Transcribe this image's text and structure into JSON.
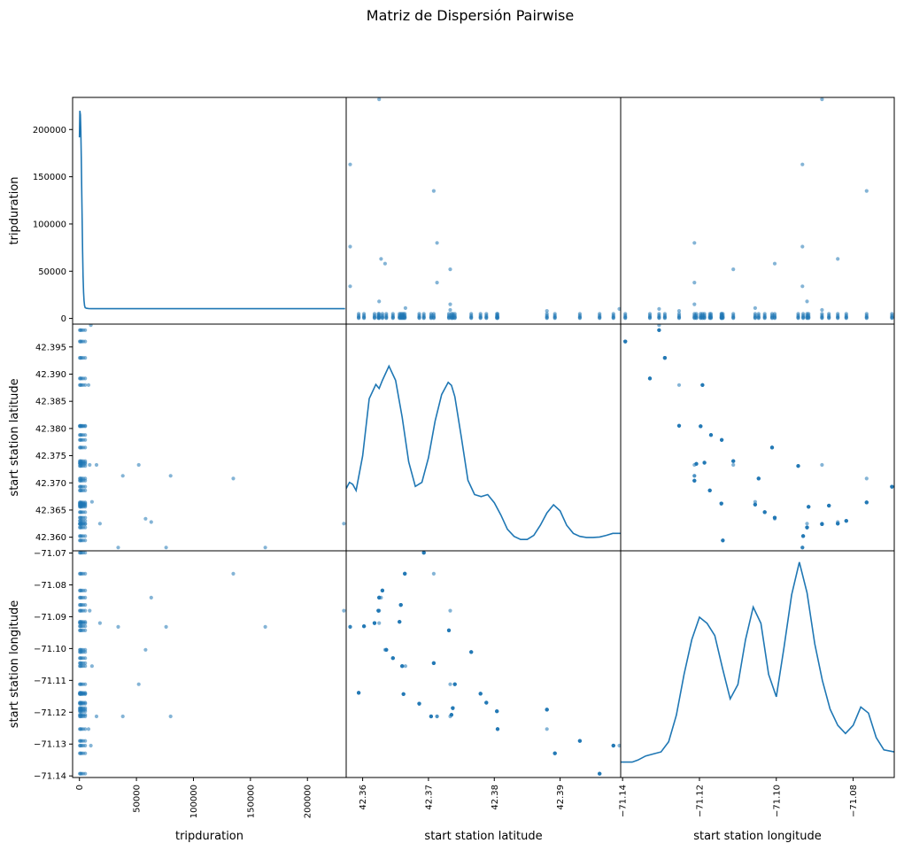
{
  "title": "Matriz de Dispersión Pairwise",
  "colors": {
    "series": "#1f77b4",
    "axis": "#000000",
    "background": "#ffffff"
  },
  "chart_data": {
    "type": "scatter",
    "title": "Matriz de Dispersión Pairwise",
    "variables": [
      "tripduration",
      "start station latitude",
      "start station longitude"
    ],
    "diagonal": "kde",
    "grid": false,
    "ranges": {
      "tripduration": [
        -6000,
        234000
      ],
      "start station latitude": [
        42.3575,
        42.3992
      ],
      "start station longitude": [
        -71.1405,
        -71.0693
      ]
    },
    "ticks": {
      "x": {
        "tripduration": {
          "values": [
            0,
            50000,
            100000,
            150000,
            200000
          ],
          "labels": [
            "0",
            "50000",
            "100000",
            "150000",
            "200000"
          ]
        },
        "start station latitude": {
          "values": [
            42.36,
            42.37,
            42.38,
            42.39
          ],
          "labels": [
            "42.36",
            "42.37",
            "42.38",
            "42.39"
          ]
        },
        "start station longitude": {
          "values": [
            -71.14,
            -71.12,
            -71.1,
            -71.08
          ],
          "labels": [
            "−71.14",
            "−71.12",
            "−71.10",
            "−71.08"
          ]
        }
      },
      "y": {
        "tripduration": {
          "values": [
            0,
            50000,
            100000,
            150000,
            200000
          ],
          "labels": [
            "0",
            "50000",
            "100000",
            "150000",
            "200000"
          ]
        },
        "start station latitude": {
          "values": [
            42.36,
            42.365,
            42.37,
            42.375,
            42.38,
            42.385,
            42.39,
            42.395
          ],
          "labels": [
            "42.360",
            "42.365",
            "42.370",
            "42.375",
            "42.380",
            "42.385",
            "42.390",
            "42.395"
          ]
        },
        "start station longitude": {
          "values": [
            -71.14,
            -71.13,
            -71.12,
            -71.11,
            -71.1,
            -71.09,
            -71.08,
            -71.07
          ],
          "labels": [
            "−71.14",
            "−71.13",
            "−71.12",
            "−71.11",
            "−71.10",
            "−71.09",
            "−71.08",
            "−71.07"
          ]
        }
      }
    },
    "stations": [
      {
        "lat": 42.3594,
        "lon": -71.1139
      },
      {
        "lat": 42.3602,
        "lon": -71.093
      },
      {
        "lat": 42.3618,
        "lon": -71.092
      },
      {
        "lat": 42.3624,
        "lon": -71.0881
      },
      {
        "lat": 42.3625,
        "lon": -71.084
      },
      {
        "lat": 42.363,
        "lon": -71.0818
      },
      {
        "lat": 42.3636,
        "lon": -71.1004
      },
      {
        "lat": 42.3646,
        "lon": -71.103
      },
      {
        "lat": 42.3656,
        "lon": -71.0916
      },
      {
        "lat": 42.3658,
        "lon": -71.0863
      },
      {
        "lat": 42.366,
        "lon": -71.1055
      },
      {
        "lat": 42.3662,
        "lon": -71.1143
      },
      {
        "lat": 42.3664,
        "lon": -71.0765
      },
      {
        "lat": 42.3686,
        "lon": -71.1173
      },
      {
        "lat": 42.3693,
        "lon": -71.0699
      },
      {
        "lat": 42.3704,
        "lon": -71.1213
      },
      {
        "lat": 42.3708,
        "lon": -71.1046
      },
      {
        "lat": 42.3731,
        "lon": -71.0943
      },
      {
        "lat": 42.3735,
        "lon": -71.1208
      },
      {
        "lat": 42.3737,
        "lon": -71.1187
      },
      {
        "lat": 42.374,
        "lon": -71.1112
      },
      {
        "lat": 42.3765,
        "lon": -71.1011
      },
      {
        "lat": 42.3779,
        "lon": -71.1142
      },
      {
        "lat": 42.3788,
        "lon": -71.117
      },
      {
        "lat": 42.3804,
        "lon": -71.1197
      },
      {
        "lat": 42.3805,
        "lon": -71.1253
      },
      {
        "lat": 42.388,
        "lon": -71.1192
      },
      {
        "lat": 42.3892,
        "lon": -71.1329
      },
      {
        "lat": 42.393,
        "lon": -71.129
      },
      {
        "lat": 42.396,
        "lon": -71.1393
      },
      {
        "lat": 42.3981,
        "lon": -71.1305
      }
    ],
    "outliers": [
      {
        "tripduration": 232000,
        "lat": 42.3625,
        "lon": -71.0881
      },
      {
        "tripduration": 163000,
        "lat": 42.3581,
        "lon": -71.0932
      },
      {
        "tripduration": 135000,
        "lat": 42.3708,
        "lon": -71.0765
      },
      {
        "tripduration": 80000,
        "lat": 42.3713,
        "lon": -71.1213
      },
      {
        "tripduration": 76000,
        "lat": 42.3581,
        "lon": -71.0932
      },
      {
        "tripduration": 63000,
        "lat": 42.3628,
        "lon": -71.084
      },
      {
        "tripduration": 58000,
        "lat": 42.3634,
        "lon": -71.1004
      },
      {
        "tripduration": 52000,
        "lat": 42.3733,
        "lon": -71.1112
      },
      {
        "tripduration": 38000,
        "lat": 42.3713,
        "lon": -71.1213
      },
      {
        "tripduration": 34000,
        "lat": 42.3581,
        "lon": -71.0932
      },
      {
        "tripduration": 18000,
        "lat": 42.3625,
        "lon": -71.092
      },
      {
        "tripduration": 15000,
        "lat": 42.3733,
        "lon": -71.1213
      },
      {
        "tripduration": 11000,
        "lat": 42.3665,
        "lon": -71.1055
      },
      {
        "tripduration": 10000,
        "lat": 42.399,
        "lon": -71.1305
      },
      {
        "tripduration": 9000,
        "lat": 42.3733,
        "lon": -71.0881
      },
      {
        "tripduration": 8000,
        "lat": 42.388,
        "lon": -71.1253
      }
    ],
    "kde": {
      "tripduration": {
        "x": [
          0,
          400,
          800,
          1200,
          1600,
          2000,
          2400,
          2800,
          3200,
          3600,
          4000,
          4500,
          5000,
          6000,
          8000,
          10000,
          15000,
          30000,
          60000,
          100000,
          150000,
          200000,
          233000
        ],
        "y": [
          0.86,
          0.99,
          0.97,
          0.89,
          0.76,
          0.6,
          0.45,
          0.3,
          0.18,
          0.1,
          0.06,
          0.035,
          0.025,
          0.022,
          0.021,
          0.02,
          0.02,
          0.02,
          0.02,
          0.02,
          0.02,
          0.02,
          0.02
        ]
      },
      "start station latitude": {
        "x": [
          42.3575,
          42.358,
          42.3585,
          42.359,
          42.36,
          42.361,
          42.362,
          42.3625,
          42.363,
          42.364,
          42.365,
          42.366,
          42.367,
          42.368,
          42.369,
          42.37,
          42.371,
          42.372,
          42.373,
          42.3735,
          42.374,
          42.375,
          42.376,
          42.377,
          42.378,
          42.379,
          42.38,
          42.381,
          42.382,
          42.383,
          42.384,
          42.385,
          42.386,
          42.387,
          42.388,
          42.389,
          42.39,
          42.391,
          42.392,
          42.393,
          42.394,
          42.395,
          42.396,
          42.397,
          42.398,
          42.3992
        ],
        "y": [
          0.25,
          0.28,
          0.27,
          0.24,
          0.41,
          0.69,
          0.76,
          0.74,
          0.78,
          0.85,
          0.78,
          0.6,
          0.38,
          0.26,
          0.28,
          0.4,
          0.58,
          0.71,
          0.77,
          0.755,
          0.7,
          0.5,
          0.29,
          0.22,
          0.21,
          0.22,
          0.18,
          0.12,
          0.05,
          0.015,
          0.0,
          0.0,
          0.02,
          0.07,
          0.13,
          0.17,
          0.14,
          0.07,
          0.03,
          0.015,
          0.01,
          0.01,
          0.012,
          0.02,
          0.03,
          0.03
        ]
      },
      "start station longitude": {
        "x": [
          -71.1405,
          -71.139,
          -71.1375,
          -71.136,
          -71.134,
          -71.132,
          -71.13,
          -71.128,
          -71.126,
          -71.124,
          -71.122,
          -71.12,
          -71.118,
          -71.116,
          -71.114,
          -71.112,
          -71.11,
          -71.108,
          -71.106,
          -71.104,
          -71.102,
          -71.1,
          -71.098,
          -71.096,
          -71.094,
          -71.092,
          -71.09,
          -71.088,
          -71.086,
          -71.084,
          -71.082,
          -71.08,
          -71.078,
          -71.076,
          -71.074,
          -71.072,
          -71.0693
        ],
        "y": [
          0.02,
          0.02,
          0.02,
          0.03,
          0.05,
          0.06,
          0.07,
          0.12,
          0.25,
          0.45,
          0.62,
          0.73,
          0.7,
          0.64,
          0.48,
          0.33,
          0.4,
          0.62,
          0.78,
          0.7,
          0.45,
          0.34,
          0.58,
          0.84,
          1.0,
          0.85,
          0.6,
          0.42,
          0.28,
          0.2,
          0.16,
          0.2,
          0.29,
          0.26,
          0.14,
          0.08,
          0.07
        ]
      }
    }
  }
}
